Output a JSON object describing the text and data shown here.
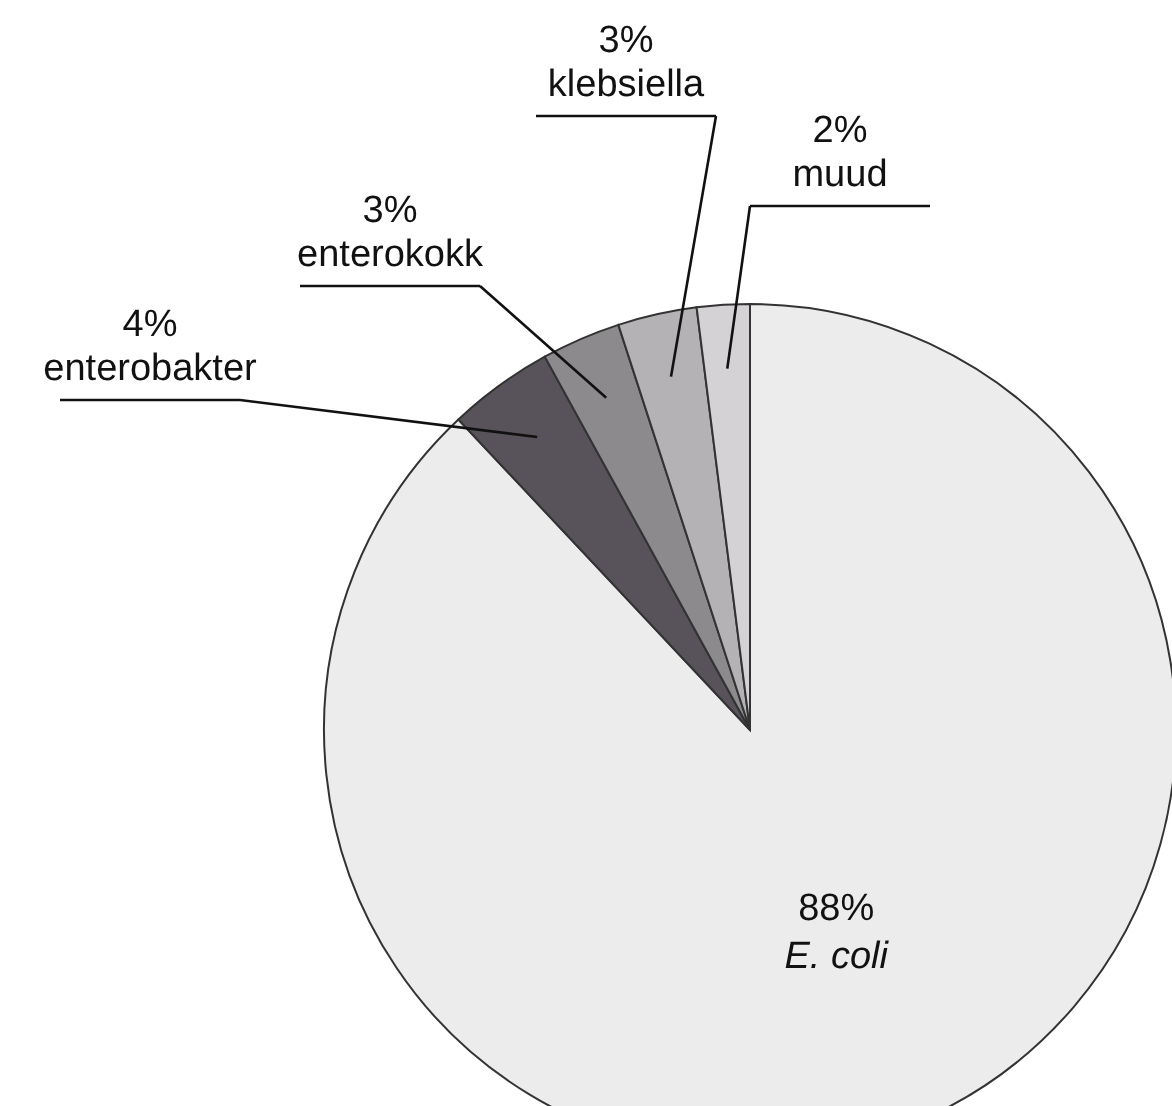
{
  "chart_data": {
    "type": "pie",
    "categories": [
      "E. coli",
      "enterobakter",
      "enterokokk",
      "klebsiella",
      "muud"
    ],
    "values": [
      88,
      4,
      3,
      3,
      2
    ],
    "colors": [
      "#ececec",
      "#58535a",
      "#8c8a8c",
      "#b4b2b4",
      "#d4d2d4"
    ],
    "value_labels": [
      "88%",
      "4%",
      "3%",
      "3%",
      "2%"
    ]
  }
}
